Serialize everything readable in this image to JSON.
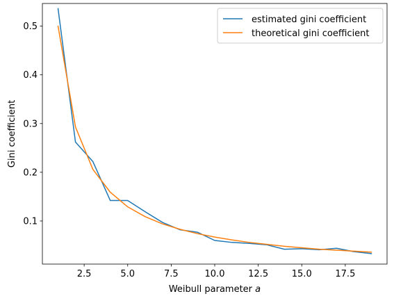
{
  "chart_data": {
    "type": "line",
    "title": "",
    "xlabel": "Weibull parameter",
    "xlabel_var": "a",
    "ylabel": "Gini coefficient",
    "xlim": [
      0.1,
      19.9
    ],
    "ylim": [
      0.0115,
      0.5465
    ],
    "xticks": [
      2.5,
      5.0,
      7.5,
      10.0,
      12.5,
      15.0,
      17.5
    ],
    "xtick_labels": [
      "2.5",
      "5.0",
      "7.5",
      "10.0",
      "12.5",
      "15.0",
      "17.5"
    ],
    "yticks": [
      0.1,
      0.2,
      0.3,
      0.4,
      0.5
    ],
    "ytick_labels": [
      "0.1",
      "0.2",
      "0.3",
      "0.4",
      "0.5"
    ],
    "grid": false,
    "legend_position": "upper-right",
    "x": [
      1,
      2,
      3,
      4,
      5,
      6,
      7,
      8,
      9,
      10,
      11,
      12,
      13,
      14,
      15,
      16,
      17,
      18,
      19
    ],
    "series": [
      {
        "name": "estimated gini coefficient",
        "color": "#1f77b4",
        "values": [
          0.536,
          0.262,
          0.222,
          0.142,
          0.142,
          0.119,
          0.097,
          0.082,
          0.077,
          0.06,
          0.056,
          0.054,
          0.051,
          0.042,
          0.043,
          0.041,
          0.044,
          0.037,
          0.033
        ]
      },
      {
        "name": "theoretical gini coefficient",
        "color": "#ff7f0e",
        "values": [
          0.5,
          0.293,
          0.206,
          0.159,
          0.129,
          0.109,
          0.094,
          0.083,
          0.074,
          0.067,
          0.061,
          0.056,
          0.052,
          0.048,
          0.045,
          0.042,
          0.04,
          0.038,
          0.036
        ]
      }
    ]
  }
}
